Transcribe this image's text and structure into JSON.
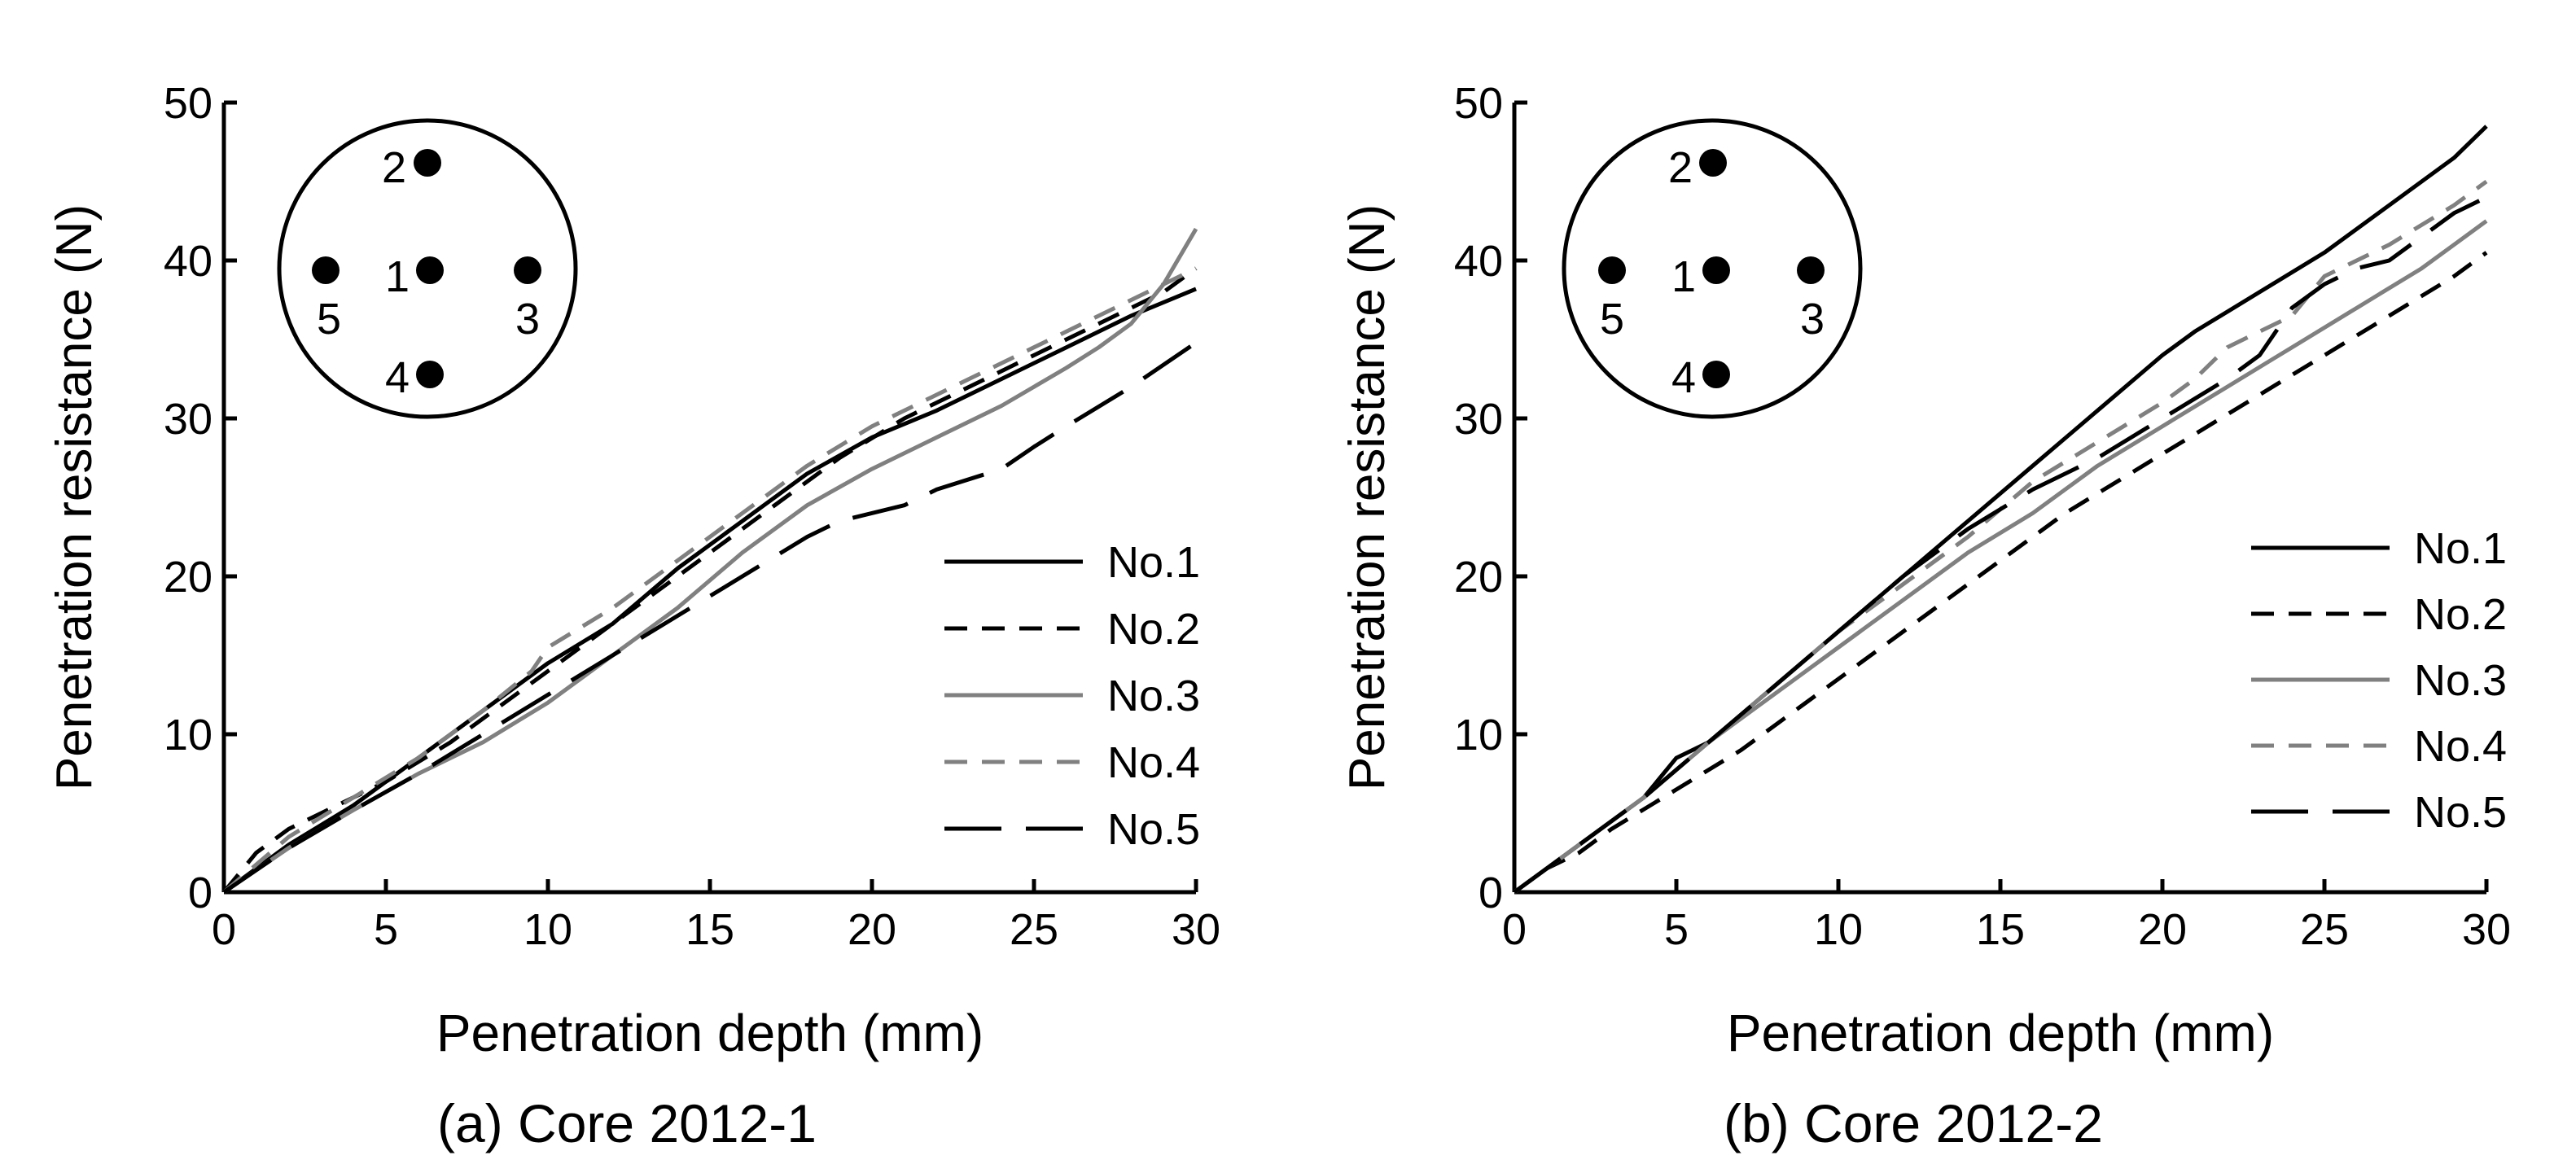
{
  "chart_data": [
    {
      "type": "line",
      "caption": "(a) Core 2012-1",
      "xlabel": "Penetration depth (mm)",
      "ylabel": "Penetration resistance (N)",
      "xlim": [
        0,
        30
      ],
      "ylim": [
        0,
        50
      ],
      "xticks": [
        "0",
        "5",
        "10",
        "15",
        "20",
        "25",
        "30"
      ],
      "yticks": [
        "0",
        "10",
        "20",
        "30",
        "40",
        "50"
      ],
      "grid": false,
      "legend_position": "bottom-right",
      "inset": {
        "description": "core cross-section with five measurement points",
        "points": [
          {
            "label": "1",
            "position": "center"
          },
          {
            "label": "2",
            "position": "top"
          },
          {
            "label": "3",
            "position": "right"
          },
          {
            "label": "4",
            "position": "bottom"
          },
          {
            "label": "5",
            "position": "left"
          }
        ]
      },
      "series": [
        {
          "name": "No.1",
          "color": "#000000",
          "dash": "solid",
          "x": [
            0,
            2,
            4,
            6,
            8,
            10,
            12,
            14,
            16,
            18,
            20,
            22,
            24,
            26,
            28,
            30
          ],
          "y": [
            0,
            3,
            5.5,
            8.5,
            11.5,
            14.5,
            17,
            20.5,
            23.5,
            26.5,
            28.8,
            30.5,
            32.5,
            34.5,
            36.5,
            38.2
          ]
        },
        {
          "name": "No.2",
          "color": "#000000",
          "dash": "dashed",
          "x": [
            0,
            1,
            2,
            3,
            5,
            7,
            9,
            11,
            13,
            15,
            17,
            19,
            21,
            23,
            25,
            27,
            29,
            30
          ],
          "y": [
            0,
            2.5,
            4,
            5,
            7,
            9.5,
            12.5,
            15.5,
            18.5,
            21.5,
            24.5,
            27.5,
            30,
            32,
            34,
            36,
            38,
            39.5
          ]
        },
        {
          "name": "No.3",
          "color": "#808080",
          "dash": "solid",
          "x": [
            0,
            2,
            4,
            6,
            8,
            10,
            12,
            14,
            16,
            18,
            20,
            22,
            24,
            26,
            27,
            28,
            29,
            30
          ],
          "y": [
            0,
            2.8,
            5.2,
            7.5,
            9.5,
            12,
            15,
            18,
            21.5,
            24.5,
            26.8,
            28.8,
            30.8,
            33.2,
            34.5,
            36,
            38.5,
            42
          ]
        },
        {
          "name": "No.4",
          "color": "#808080",
          "dash": "dashed",
          "x": [
            0,
            2,
            4,
            6,
            8,
            9.5,
            10,
            12,
            14,
            16,
            18,
            20,
            22,
            24,
            26,
            28,
            30
          ],
          "y": [
            0,
            3.5,
            6,
            8.5,
            11.5,
            14,
            15.5,
            18,
            21,
            24,
            27,
            29.5,
            31.5,
            33.5,
            35.5,
            37.5,
            39.5
          ]
        },
        {
          "name": "No.5",
          "color": "#000000",
          "dash": "longdash",
          "x": [
            0,
            2,
            4,
            6,
            8,
            10,
            12,
            14,
            16,
            18,
            19,
            21,
            22,
            24,
            25,
            26,
            28,
            30
          ],
          "y": [
            0,
            2.8,
            5.2,
            7.5,
            10,
            12.5,
            15,
            17.5,
            20,
            22.5,
            23.5,
            24.5,
            25.5,
            26.8,
            28.2,
            29.5,
            32,
            34.8
          ]
        }
      ]
    },
    {
      "type": "line",
      "caption": "(b) Core 2012-2",
      "xlabel": "Penetration depth (mm)",
      "ylabel": "Penetration resistance (N)",
      "xlim": [
        0,
        30
      ],
      "ylim": [
        0,
        50
      ],
      "xticks": [
        "0",
        "5",
        "10",
        "15",
        "20",
        "25",
        "30"
      ],
      "yticks": [
        "0",
        "10",
        "20",
        "30",
        "40",
        "50"
      ],
      "grid": false,
      "legend_position": "right",
      "inset": {
        "description": "core cross-section with five measurement points",
        "points": [
          {
            "label": "1",
            "position": "center"
          },
          {
            "label": "2",
            "position": "top"
          },
          {
            "label": "3",
            "position": "right"
          },
          {
            "label": "4",
            "position": "bottom"
          },
          {
            "label": "5",
            "position": "left"
          }
        ]
      },
      "series": [
        {
          "name": "No.1",
          "color": "#000000",
          "dash": "solid",
          "x": [
            0,
            2,
            4,
            5,
            6,
            8,
            10,
            12,
            14,
            16,
            18,
            20,
            21,
            23,
            25,
            27,
            29,
            30
          ],
          "y": [
            0,
            3,
            6,
            8.5,
            9.5,
            13,
            16.5,
            20,
            23.5,
            27,
            30.5,
            34,
            35.5,
            38,
            40.5,
            43.5,
            46.5,
            48.5
          ]
        },
        {
          "name": "No.2",
          "color": "#000000",
          "dash": "dashed",
          "x": [
            0,
            1,
            2,
            3,
            5,
            7,
            9,
            11,
            13,
            15,
            17,
            19,
            21,
            23,
            25,
            27,
            29,
            30
          ],
          "y": [
            0,
            1.5,
            2.5,
            4,
            6.5,
            9,
            12,
            15,
            18,
            21,
            24,
            26.5,
            29,
            31.5,
            34,
            36.5,
            39,
            40.5
          ]
        },
        {
          "name": "No.3",
          "color": "#808080",
          "dash": "solid",
          "x": [
            0,
            2,
            4,
            6,
            8,
            10,
            12,
            14,
            16,
            18,
            20,
            22,
            24,
            26,
            28,
            29,
            30
          ],
          "y": [
            0,
            3,
            6,
            9.5,
            12.5,
            15.5,
            18.5,
            21.5,
            24,
            27,
            29.5,
            32,
            34.5,
            37,
            39.5,
            41,
            42.5
          ]
        },
        {
          "name": "No.4",
          "color": "#808080",
          "dash": "dashed",
          "x": [
            0,
            2,
            4,
            6,
            8,
            10,
            12,
            14,
            16,
            18,
            20,
            21,
            22,
            24,
            25,
            27,
            29,
            30
          ],
          "y": [
            0,
            3,
            6,
            9.5,
            13,
            16.5,
            19.5,
            22.5,
            26,
            28.5,
            31,
            32.5,
            34.5,
            36.5,
            39,
            41,
            43.5,
            45
          ]
        },
        {
          "name": "No.5",
          "color": "#000000",
          "dash": "longdash",
          "x": [
            0,
            2,
            4,
            6,
            8,
            10,
            12,
            14,
            16,
            18,
            20,
            22,
            23,
            24,
            25,
            26,
            27,
            28,
            29,
            30
          ],
          "y": [
            0,
            3,
            6,
            9.5,
            13,
            16.5,
            20,
            23,
            25.5,
            27.5,
            30,
            32.5,
            34,
            37,
            38.5,
            39.5,
            40,
            41.5,
            43,
            44
          ]
        }
      ]
    }
  ]
}
